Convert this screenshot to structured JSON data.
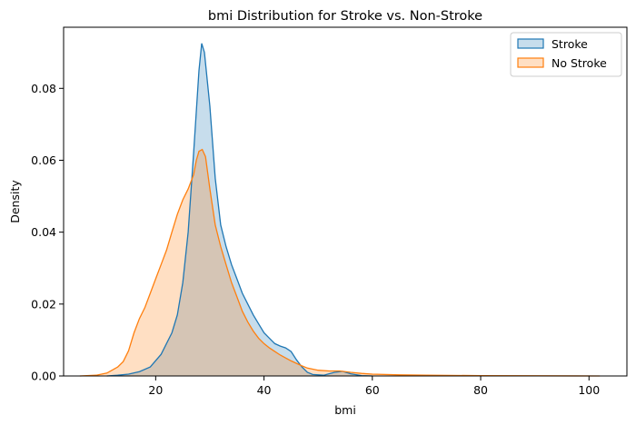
{
  "chart_data": {
    "type": "area",
    "title": "bmi Distribution for Stroke vs. Non-Stroke",
    "xlabel": "bmi",
    "ylabel": "Density",
    "xlim": [
      3,
      107
    ],
    "ylim": [
      0,
      0.097
    ],
    "xticks": [
      20,
      40,
      60,
      80,
      100
    ],
    "xtick_labels": [
      "20",
      "40",
      "60",
      "80",
      "100"
    ],
    "yticks": [
      0,
      0.02,
      0.04,
      0.06,
      0.08
    ],
    "ytick_labels": [
      "0.00",
      "0.02",
      "0.04",
      "0.06",
      "0.08"
    ],
    "grid": false,
    "legend_position": "top-right",
    "series": [
      {
        "name": "Stroke",
        "color": "#1f77b4",
        "points": [
          [
            11,
            0
          ],
          [
            13,
            0.0002
          ],
          [
            15,
            0.0005
          ],
          [
            17,
            0.0012
          ],
          [
            19,
            0.0025
          ],
          [
            21,
            0.006
          ],
          [
            23,
            0.012
          ],
          [
            24,
            0.017
          ],
          [
            25,
            0.026
          ],
          [
            26,
            0.04
          ],
          [
            27,
            0.062
          ],
          [
            28,
            0.085
          ],
          [
            28.5,
            0.0925
          ],
          [
            29,
            0.09
          ],
          [
            30,
            0.075
          ],
          [
            31,
            0.055
          ],
          [
            32,
            0.042
          ],
          [
            33,
            0.036
          ],
          [
            34,
            0.031
          ],
          [
            35,
            0.027
          ],
          [
            36,
            0.023
          ],
          [
            37,
            0.02
          ],
          [
            38,
            0.017
          ],
          [
            39,
            0.0145
          ],
          [
            40,
            0.012
          ],
          [
            41,
            0.0105
          ],
          [
            42,
            0.009
          ],
          [
            43,
            0.0083
          ],
          [
            44,
            0.0078
          ],
          [
            45,
            0.0068
          ],
          [
            46,
            0.0045
          ],
          [
            47,
            0.0025
          ],
          [
            48,
            0.001
          ],
          [
            49,
            0.0004
          ],
          [
            51,
            0.0002
          ],
          [
            53,
            0.001
          ],
          [
            54.5,
            0.0013
          ],
          [
            56,
            0.0006
          ],
          [
            58,
            0.0001
          ],
          [
            60,
            0
          ]
        ]
      },
      {
        "name": "No Stroke",
        "color": "#ff7f0e",
        "points": [
          [
            6,
            0
          ],
          [
            9,
            0.0002
          ],
          [
            11,
            0.0008
          ],
          [
            13,
            0.0025
          ],
          [
            14,
            0.004
          ],
          [
            15,
            0.007
          ],
          [
            16,
            0.012
          ],
          [
            17,
            0.016
          ],
          [
            18,
            0.019
          ],
          [
            19,
            0.023
          ],
          [
            20,
            0.027
          ],
          [
            21,
            0.031
          ],
          [
            22,
            0.035
          ],
          [
            23,
            0.04
          ],
          [
            24,
            0.045
          ],
          [
            25,
            0.049
          ],
          [
            26,
            0.052
          ],
          [
            27,
            0.056
          ],
          [
            27.5,
            0.06
          ],
          [
            28,
            0.0625
          ],
          [
            28.6,
            0.063
          ],
          [
            29.2,
            0.061
          ],
          [
            30,
            0.052
          ],
          [
            31,
            0.042
          ],
          [
            32,
            0.036
          ],
          [
            33,
            0.031
          ],
          [
            34,
            0.026
          ],
          [
            35,
            0.022
          ],
          [
            36,
            0.018
          ],
          [
            37,
            0.015
          ],
          [
            38,
            0.0125
          ],
          [
            39,
            0.0105
          ],
          [
            40,
            0.009
          ],
          [
            41,
            0.0078
          ],
          [
            42,
            0.0068
          ],
          [
            43,
            0.0058
          ],
          [
            44,
            0.005
          ],
          [
            45,
            0.0042
          ],
          [
            46,
            0.0035
          ],
          [
            47,
            0.0028
          ],
          [
            48,
            0.0022
          ],
          [
            50,
            0.0016
          ],
          [
            52,
            0.0014
          ],
          [
            54,
            0.0014
          ],
          [
            56,
            0.001
          ],
          [
            58,
            0.0007
          ],
          [
            60,
            0.0005
          ],
          [
            65,
            0.0003
          ],
          [
            70,
            0.0002
          ],
          [
            80,
            0.0001
          ],
          [
            90,
            5e-05
          ],
          [
            102,
            0
          ]
        ]
      }
    ]
  }
}
